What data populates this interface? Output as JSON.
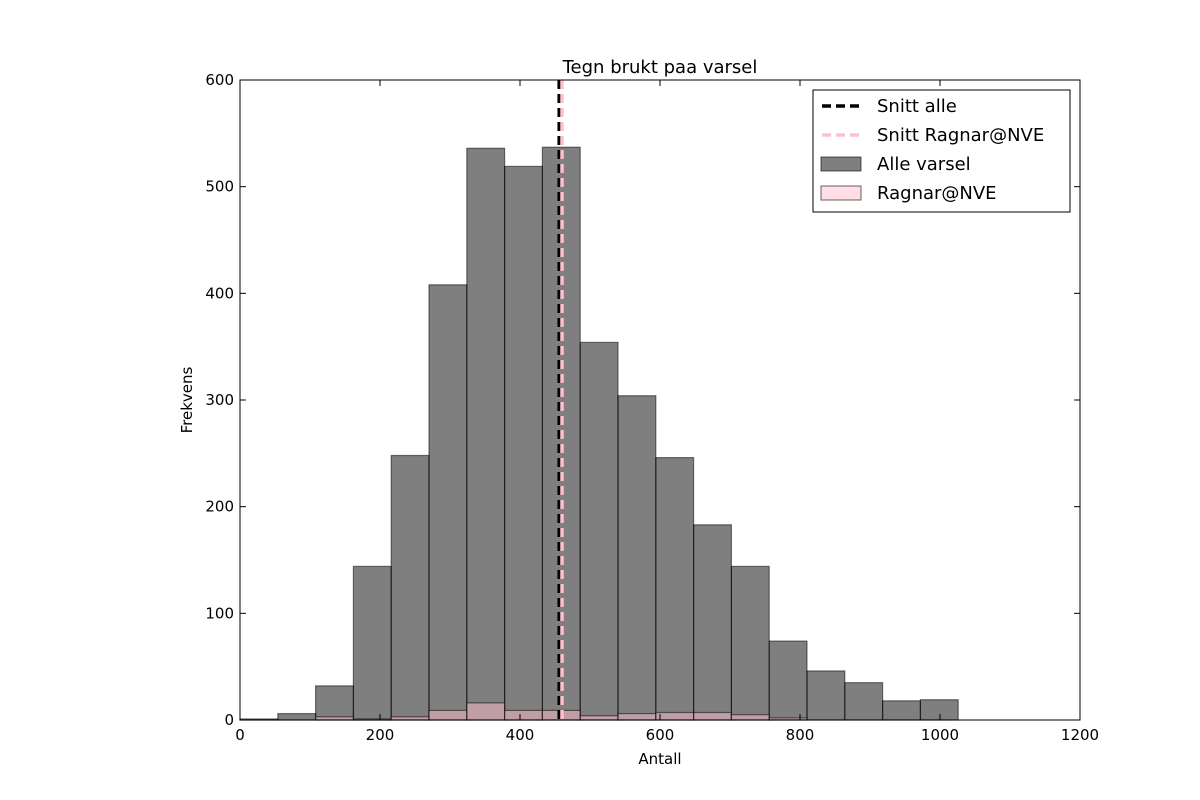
{
  "chart_data": {
    "type": "bar",
    "title": "Tegn brukt paa varsel",
    "xlabel": "Antall",
    "ylabel": "Frekvens",
    "xlim": [
      0,
      1200
    ],
    "ylim": [
      0,
      600
    ],
    "xticks": [
      0,
      200,
      400,
      600,
      800,
      1000,
      1200
    ],
    "yticks": [
      0,
      100,
      200,
      300,
      400,
      500,
      600
    ],
    "bin_edges": [
      0,
      54,
      108,
      162,
      216,
      270,
      324,
      378,
      432,
      486,
      540,
      594,
      648,
      702,
      756,
      810,
      864,
      918,
      972,
      1026
    ],
    "series": [
      {
        "name": "Alle varsel",
        "color": "#000000",
        "opacity": 0.5,
        "values": [
          1,
          6,
          32,
          144,
          248,
          408,
          536,
          519,
          537,
          354,
          304,
          246,
          183,
          144,
          74,
          46,
          35,
          18,
          19
        ]
      },
      {
        "name": "Ragnar@NVE",
        "color": "#ffc0cb",
        "opacity": 0.5,
        "values": [
          0,
          0,
          3,
          1,
          3,
          9,
          16,
          9,
          9,
          4,
          6,
          7,
          7,
          5,
          2,
          0,
          0,
          0,
          0
        ]
      }
    ],
    "vlines": [
      {
        "name": "Snitt alle",
        "x": 456,
        "color": "#000000",
        "style": "dashed"
      },
      {
        "name": "Snitt Ragnar@NVE",
        "x": 460,
        "color": "#ffc0cb",
        "style": "dashed"
      }
    ],
    "legend": {
      "placement": "top-right",
      "entries": [
        "Snitt alle",
        "Snitt Ragnar@NVE",
        "Alle varsel",
        "Ragnar@NVE"
      ]
    },
    "grid": false
  }
}
